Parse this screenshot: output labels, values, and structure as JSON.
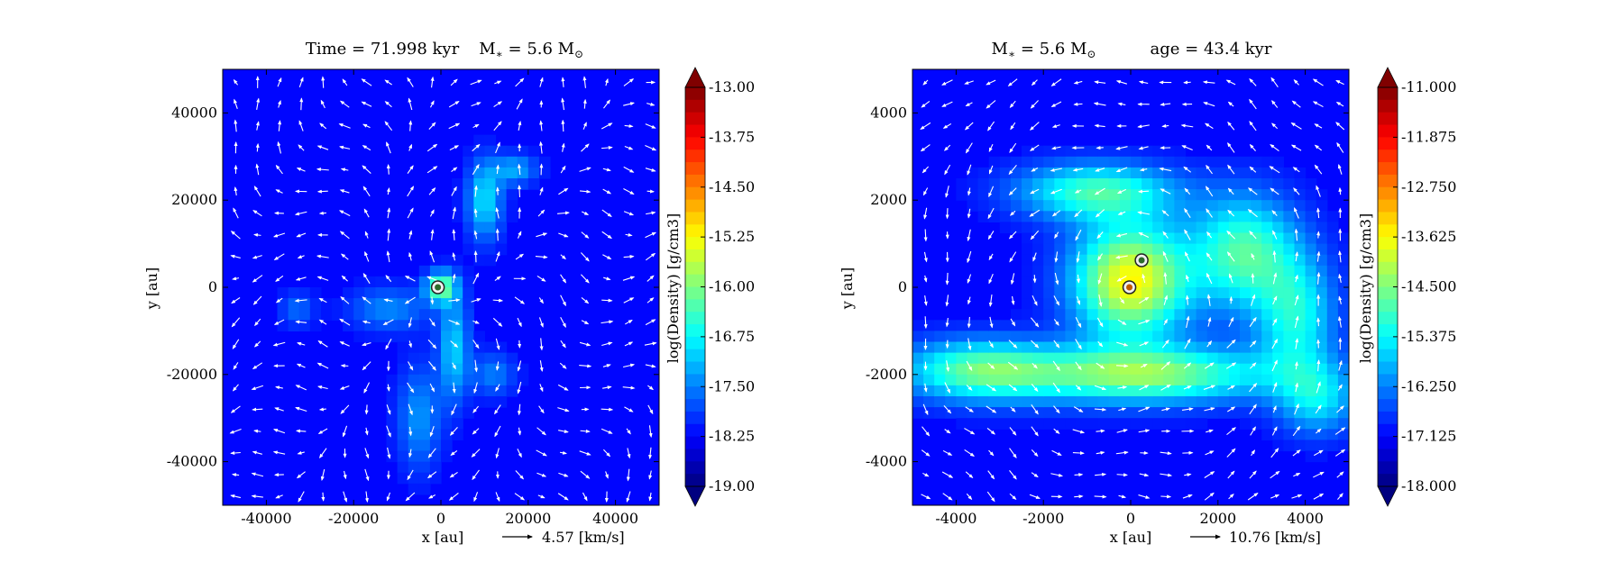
{
  "chart_data": [
    {
      "type": "heatmap",
      "title": "Time = 71.998 kyr    M$_*$ = 5.6 M$_\\odot$",
      "title_parts": {
        "time": "Time = 71.998 kyr",
        "mass_prefix": "M",
        "mass_value": " = 5.6 M"
      },
      "xlabel": "x [au]",
      "ylabel": "y [au]",
      "xlim": [
        -50000,
        50000
      ],
      "ylim": [
        -50000,
        50000
      ],
      "xticks": [
        -40000,
        -20000,
        0,
        20000,
        40000
      ],
      "xtick_labels": [
        "-40000",
        "-20000",
        "0",
        "20000",
        "40000"
      ],
      "yticks": [
        40000,
        20000,
        0,
        -20000,
        -40000
      ],
      "ytick_labels": [
        "40000",
        "20000",
        "0",
        "-20000",
        "-40000"
      ],
      "quiver_key": "4.57 [km/s]",
      "colorbar": {
        "label": "log(Density) [g/cm3]",
        "range": [
          -19.0,
          -13.0
        ],
        "ticks": [
          -13.0,
          -13.75,
          -14.5,
          -15.25,
          -16.0,
          -16.75,
          -17.5,
          -18.25,
          -19.0
        ],
        "tick_labels": [
          "-13.00",
          "-13.75",
          "-14.50",
          "-15.25",
          "-16.00",
          "-16.75",
          "-17.50",
          "-18.25",
          "-19.00"
        ]
      },
      "features": [
        {
          "x": 0,
          "y": 0,
          "level": 0.35,
          "sx": 3500,
          "sy": 3500
        },
        {
          "x": 10000,
          "y": 20000,
          "level": 0.22,
          "sx": 4000,
          "sy": 9000
        },
        {
          "x": 17000,
          "y": 27000,
          "level": 0.16,
          "sx": 5000,
          "sy": 3500
        },
        {
          "x": 3000,
          "y": -14000,
          "level": 0.2,
          "sx": 3500,
          "sy": 12000
        },
        {
          "x": -5000,
          "y": -30000,
          "level": 0.14,
          "sx": 5000,
          "sy": 12000
        },
        {
          "x": -12000,
          "y": -5000,
          "level": 0.13,
          "sx": 9000,
          "sy": 5000
        },
        {
          "x": -33000,
          "y": -5000,
          "level": 0.1,
          "sx": 4000,
          "sy": 4000
        },
        {
          "x": 12000,
          "y": -20000,
          "level": 0.12,
          "sx": 5000,
          "sy": 5000
        }
      ],
      "sinks": [
        {
          "x": -700,
          "y": 0,
          "color": "#2a6a2a"
        }
      ]
    },
    {
      "type": "heatmap",
      "title": "M$_*$ = 5.6 M$_\\odot$    age = 43.4 kyr",
      "title_parts": {
        "mass_prefix": "M",
        "mass_value": " = 5.6 M",
        "age": "age = 43.4 kyr"
      },
      "xlabel": "x [au]",
      "ylabel": "y [au]",
      "xlim": [
        -5000,
        5000
      ],
      "ylim": [
        -5000,
        5000
      ],
      "xticks": [
        -4000,
        -2000,
        0,
        2000,
        4000
      ],
      "xtick_labels": [
        "-4000",
        "-2000",
        "0",
        "2000",
        "4000"
      ],
      "yticks": [
        4000,
        2000,
        0,
        -2000,
        -4000
      ],
      "ytick_labels": [
        "4000",
        "2000",
        "0",
        "-2000",
        "-4000"
      ],
      "quiver_key": "10.76 [km/s]",
      "colorbar": {
        "label": "log(Density) [g/cm3]",
        "range": [
          -18.0,
          -11.0
        ],
        "ticks": [
          -11.0,
          -11.875,
          -12.75,
          -13.625,
          -14.5,
          -15.375,
          -16.25,
          -17.125,
          -18.0
        ],
        "tick_labels": [
          "-11.000",
          "-11.875",
          "-12.750",
          "-13.625",
          "-14.500",
          "-15.375",
          "-16.250",
          "-17.125",
          "-18.000"
        ]
      },
      "features": [
        {
          "x": 0,
          "y": 150,
          "level": 0.5,
          "sx": 1300,
          "sy": 1300
        },
        {
          "x": 300,
          "y": -2000,
          "level": 0.38,
          "sx": 3000,
          "sy": 650
        },
        {
          "x": -3500,
          "y": -1900,
          "level": 0.3,
          "sx": 1800,
          "sy": 700
        },
        {
          "x": 2600,
          "y": 800,
          "level": 0.32,
          "sx": 1200,
          "sy": 1300
        },
        {
          "x": -800,
          "y": 2200,
          "level": 0.3,
          "sx": 1800,
          "sy": 650
        },
        {
          "x": 3800,
          "y": -700,
          "level": 0.25,
          "sx": 900,
          "sy": 1400
        },
        {
          "x": 4300,
          "y": -2600,
          "level": 0.2,
          "sx": 900,
          "sy": 800
        }
      ],
      "sinks": [
        {
          "x": -30,
          "y": 0,
          "color": "#c05a00"
        },
        {
          "x": 250,
          "y": 620,
          "color": "#2a6a2a"
        }
      ]
    }
  ]
}
